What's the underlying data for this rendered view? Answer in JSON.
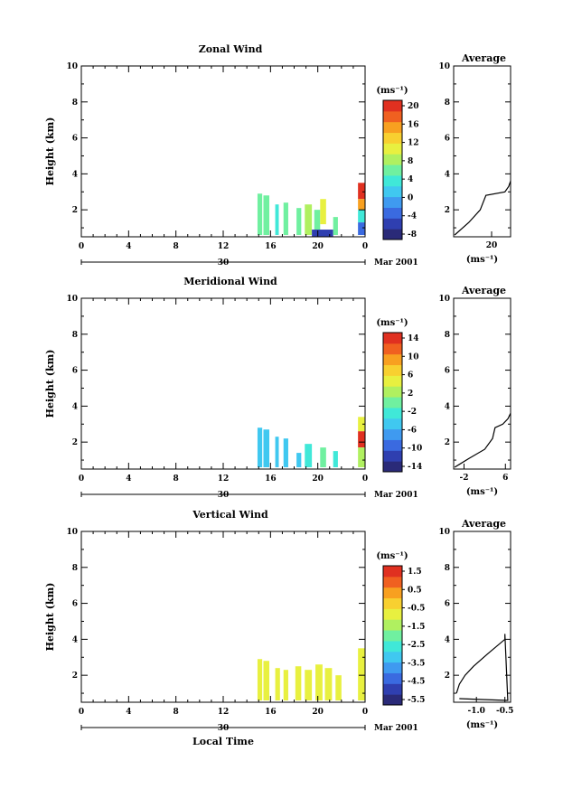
{
  "colors": [
    "#2a2a78",
    "#2f3fb0",
    "#3a6ae0",
    "#3f9af0",
    "#40c8f0",
    "#40e8d8",
    "#70f0a0",
    "#b0f060",
    "#e8f040",
    "#f8d030",
    "#f8a020",
    "#f06020",
    "#e03020"
  ],
  "chart_data": [
    {
      "type": "heatmap",
      "title": "Zonal Wind",
      "ylabel": "Height (km)",
      "xlabel": "",
      "xlim": [
        0,
        24
      ],
      "ylim": [
        0.5,
        10
      ],
      "xticks": [
        "0",
        "4",
        "8",
        "12",
        "16",
        "20",
        "0"
      ],
      "yticks": [
        "2",
        "4",
        "6",
        "8",
        "10"
      ],
      "date_label": "30",
      "month_label": "Mar 2001",
      "colorbar": {
        "unit": "(ms⁻¹)",
        "labels": [
          "20",
          "16",
          "12",
          "8",
          "4",
          "0",
          "-4",
          "-8"
        ],
        "range": [
          -10,
          22
        ]
      },
      "data_blocks": [
        {
          "t": 14.9,
          "w": 0.4,
          "z0": 0.6,
          "z1": 2.9,
          "v": 6
        },
        {
          "t": 15.4,
          "w": 0.5,
          "z0": 0.6,
          "z1": 2.8,
          "v": 5
        },
        {
          "t": 16.4,
          "w": 0.3,
          "z0": 0.6,
          "z1": 2.3,
          "v": 4
        },
        {
          "t": 17.1,
          "w": 0.4,
          "z0": 0.6,
          "z1": 2.4,
          "v": 5
        },
        {
          "t": 18.2,
          "w": 0.4,
          "z0": 0.6,
          "z1": 2.1,
          "v": 6
        },
        {
          "t": 18.9,
          "w": 0.6,
          "z0": 0.6,
          "z1": 2.3,
          "v": 9
        },
        {
          "t": 19.7,
          "w": 0.5,
          "z0": 0.6,
          "z1": 2.0,
          "v": 7
        },
        {
          "t": 20.2,
          "w": 0.5,
          "z0": 1.2,
          "z1": 2.6,
          "v": 12
        },
        {
          "t": 19.5,
          "w": 1.8,
          "z0": 0.5,
          "z1": 0.9,
          "v": -6
        },
        {
          "t": 21.3,
          "w": 0.4,
          "z0": 0.6,
          "z1": 1.6,
          "v": 5
        },
        {
          "t": 23.4,
          "w": 0.6,
          "z0": 2.6,
          "z1": 3.5,
          "v": 21
        },
        {
          "t": 23.4,
          "w": 0.6,
          "z0": 2.0,
          "z1": 2.6,
          "v": 16
        },
        {
          "t": 23.4,
          "w": 0.6,
          "z0": 1.3,
          "z1": 2.0,
          "v": 4
        },
        {
          "t": 23.4,
          "w": 0.6,
          "z0": 0.6,
          "z1": 1.3,
          "v": -4
        }
      ],
      "average": {
        "title": "Average",
        "xlabel": "(ms⁻¹)",
        "xlim": [
          0,
          30
        ],
        "xticks": [
          "20"
        ],
        "yticks": [
          "2",
          "4",
          "6",
          "8",
          "10"
        ],
        "x": [
          0.5,
          8,
          14,
          17,
          27,
          29,
          30
        ],
        "y": [
          0.6,
          1.3,
          2.0,
          2.8,
          3.0,
          3.3,
          3.6
        ]
      }
    },
    {
      "type": "heatmap",
      "title": "Meridional Wind",
      "ylabel": "Height (km)",
      "xlabel": "",
      "xlim": [
        0,
        24
      ],
      "ylim": [
        0.5,
        10
      ],
      "xticks": [
        "0",
        "4",
        "8",
        "12",
        "16",
        "20",
        "0"
      ],
      "yticks": [
        "2",
        "4",
        "6",
        "8",
        "10"
      ],
      "date_label": "30",
      "month_label": "Mar 2001",
      "colorbar": {
        "unit": "(ms⁻¹)",
        "labels": [
          "14",
          "10",
          "6",
          "2",
          "-2",
          "-6",
          "-10",
          "-14"
        ],
        "range": [
          -16,
          16
        ]
      },
      "data_blocks": [
        {
          "t": 14.9,
          "w": 0.4,
          "z0": 0.6,
          "z1": 2.8,
          "v": -4
        },
        {
          "t": 15.4,
          "w": 0.5,
          "z0": 0.6,
          "z1": 2.7,
          "v": -6
        },
        {
          "t": 16.4,
          "w": 0.3,
          "z0": 0.6,
          "z1": 2.3,
          "v": -4
        },
        {
          "t": 17.1,
          "w": 0.4,
          "z0": 0.6,
          "z1": 2.2,
          "v": -5
        },
        {
          "t": 18.2,
          "w": 0.4,
          "z0": 0.6,
          "z1": 1.4,
          "v": -4
        },
        {
          "t": 18.9,
          "w": 0.6,
          "z0": 0.6,
          "z1": 1.9,
          "v": -3
        },
        {
          "t": 20.2,
          "w": 0.5,
          "z0": 0.6,
          "z1": 1.7,
          "v": 0
        },
        {
          "t": 21.3,
          "w": 0.4,
          "z0": 0.6,
          "z1": 1.5,
          "v": -2
        },
        {
          "t": 23.4,
          "w": 0.6,
          "z0": 2.6,
          "z1": 3.4,
          "v": 6
        },
        {
          "t": 23.4,
          "w": 0.6,
          "z0": 1.7,
          "z1": 2.6,
          "v": 14
        },
        {
          "t": 23.4,
          "w": 0.6,
          "z0": 0.6,
          "z1": 1.7,
          "v": 2
        }
      ],
      "average": {
        "title": "Average",
        "xlabel": "(ms⁻¹)",
        "xlim": [
          -4,
          7
        ],
        "xticks": [
          "-2",
          "6"
        ],
        "yticks": [
          "2",
          "4",
          "6",
          "8",
          "10"
        ],
        "x": [
          -3.8,
          -1,
          2,
          3.5,
          4,
          5.5,
          6.5,
          7
        ],
        "y": [
          0.6,
          1.1,
          1.6,
          2.2,
          2.8,
          3.0,
          3.3,
          3.6
        ]
      }
    },
    {
      "type": "heatmap",
      "title": "Vertical Wind",
      "ylabel": "Height (km)",
      "xlabel": "Local Time",
      "xlim": [
        0,
        24
      ],
      "ylim": [
        0.5,
        10
      ],
      "xticks": [
        "0",
        "4",
        "8",
        "12",
        "16",
        "20",
        "0"
      ],
      "yticks": [
        "2",
        "4",
        "6",
        "8",
        "10"
      ],
      "date_label": "30",
      "month_label": "Mar 2001",
      "colorbar": {
        "unit": "(ms⁻¹)",
        "labels": [
          "1.5",
          "0.5",
          "-0.5",
          "-1.5",
          "-2.5",
          "-3.5",
          "-4.5",
          "-5.5"
        ],
        "range": [
          -6.5,
          2.5
        ]
      },
      "data_blocks": [
        {
          "t": 14.9,
          "w": 0.4,
          "z0": 0.6,
          "z1": 2.9,
          "v": -0.6
        },
        {
          "t": 15.4,
          "w": 0.5,
          "z0": 0.6,
          "z1": 2.8,
          "v": -0.9
        },
        {
          "t": 16.4,
          "w": 0.4,
          "z0": 0.6,
          "z1": 2.4,
          "v": -0.7
        },
        {
          "t": 17.1,
          "w": 0.4,
          "z0": 0.6,
          "z1": 2.3,
          "v": -0.5
        },
        {
          "t": 18.1,
          "w": 0.5,
          "z0": 0.6,
          "z1": 2.5,
          "v": -0.8
        },
        {
          "t": 18.9,
          "w": 0.6,
          "z0": 0.6,
          "z1": 2.3,
          "v": -0.6
        },
        {
          "t": 19.8,
          "w": 0.6,
          "z0": 0.6,
          "z1": 2.6,
          "v": -0.4
        },
        {
          "t": 20.6,
          "w": 0.6,
          "z0": 0.6,
          "z1": 2.4,
          "v": -0.7
        },
        {
          "t": 21.5,
          "w": 0.5,
          "z0": 0.6,
          "z1": 2.0,
          "v": -0.9
        },
        {
          "t": 23.4,
          "w": 0.6,
          "z0": 0.6,
          "z1": 3.5,
          "v": -0.6
        }
      ],
      "average": {
        "title": "Average",
        "xlabel": "(ms⁻¹)",
        "xlim": [
          -1.4,
          -0.4
        ],
        "xticks": [
          "-1.0",
          "-0.5"
        ],
        "yticks": [
          "2",
          "4",
          "6",
          "8",
          "10"
        ],
        "x": [
          -1.35,
          -1.3,
          -1.2,
          -1.05,
          -0.8,
          -0.5,
          -0.5,
          -0.45,
          -0.9,
          -1.3
        ],
        "y": [
          1.0,
          1.5,
          2.0,
          2.5,
          3.2,
          4.0,
          4.3,
          0.6,
          0.65,
          0.7
        ]
      }
    }
  ]
}
